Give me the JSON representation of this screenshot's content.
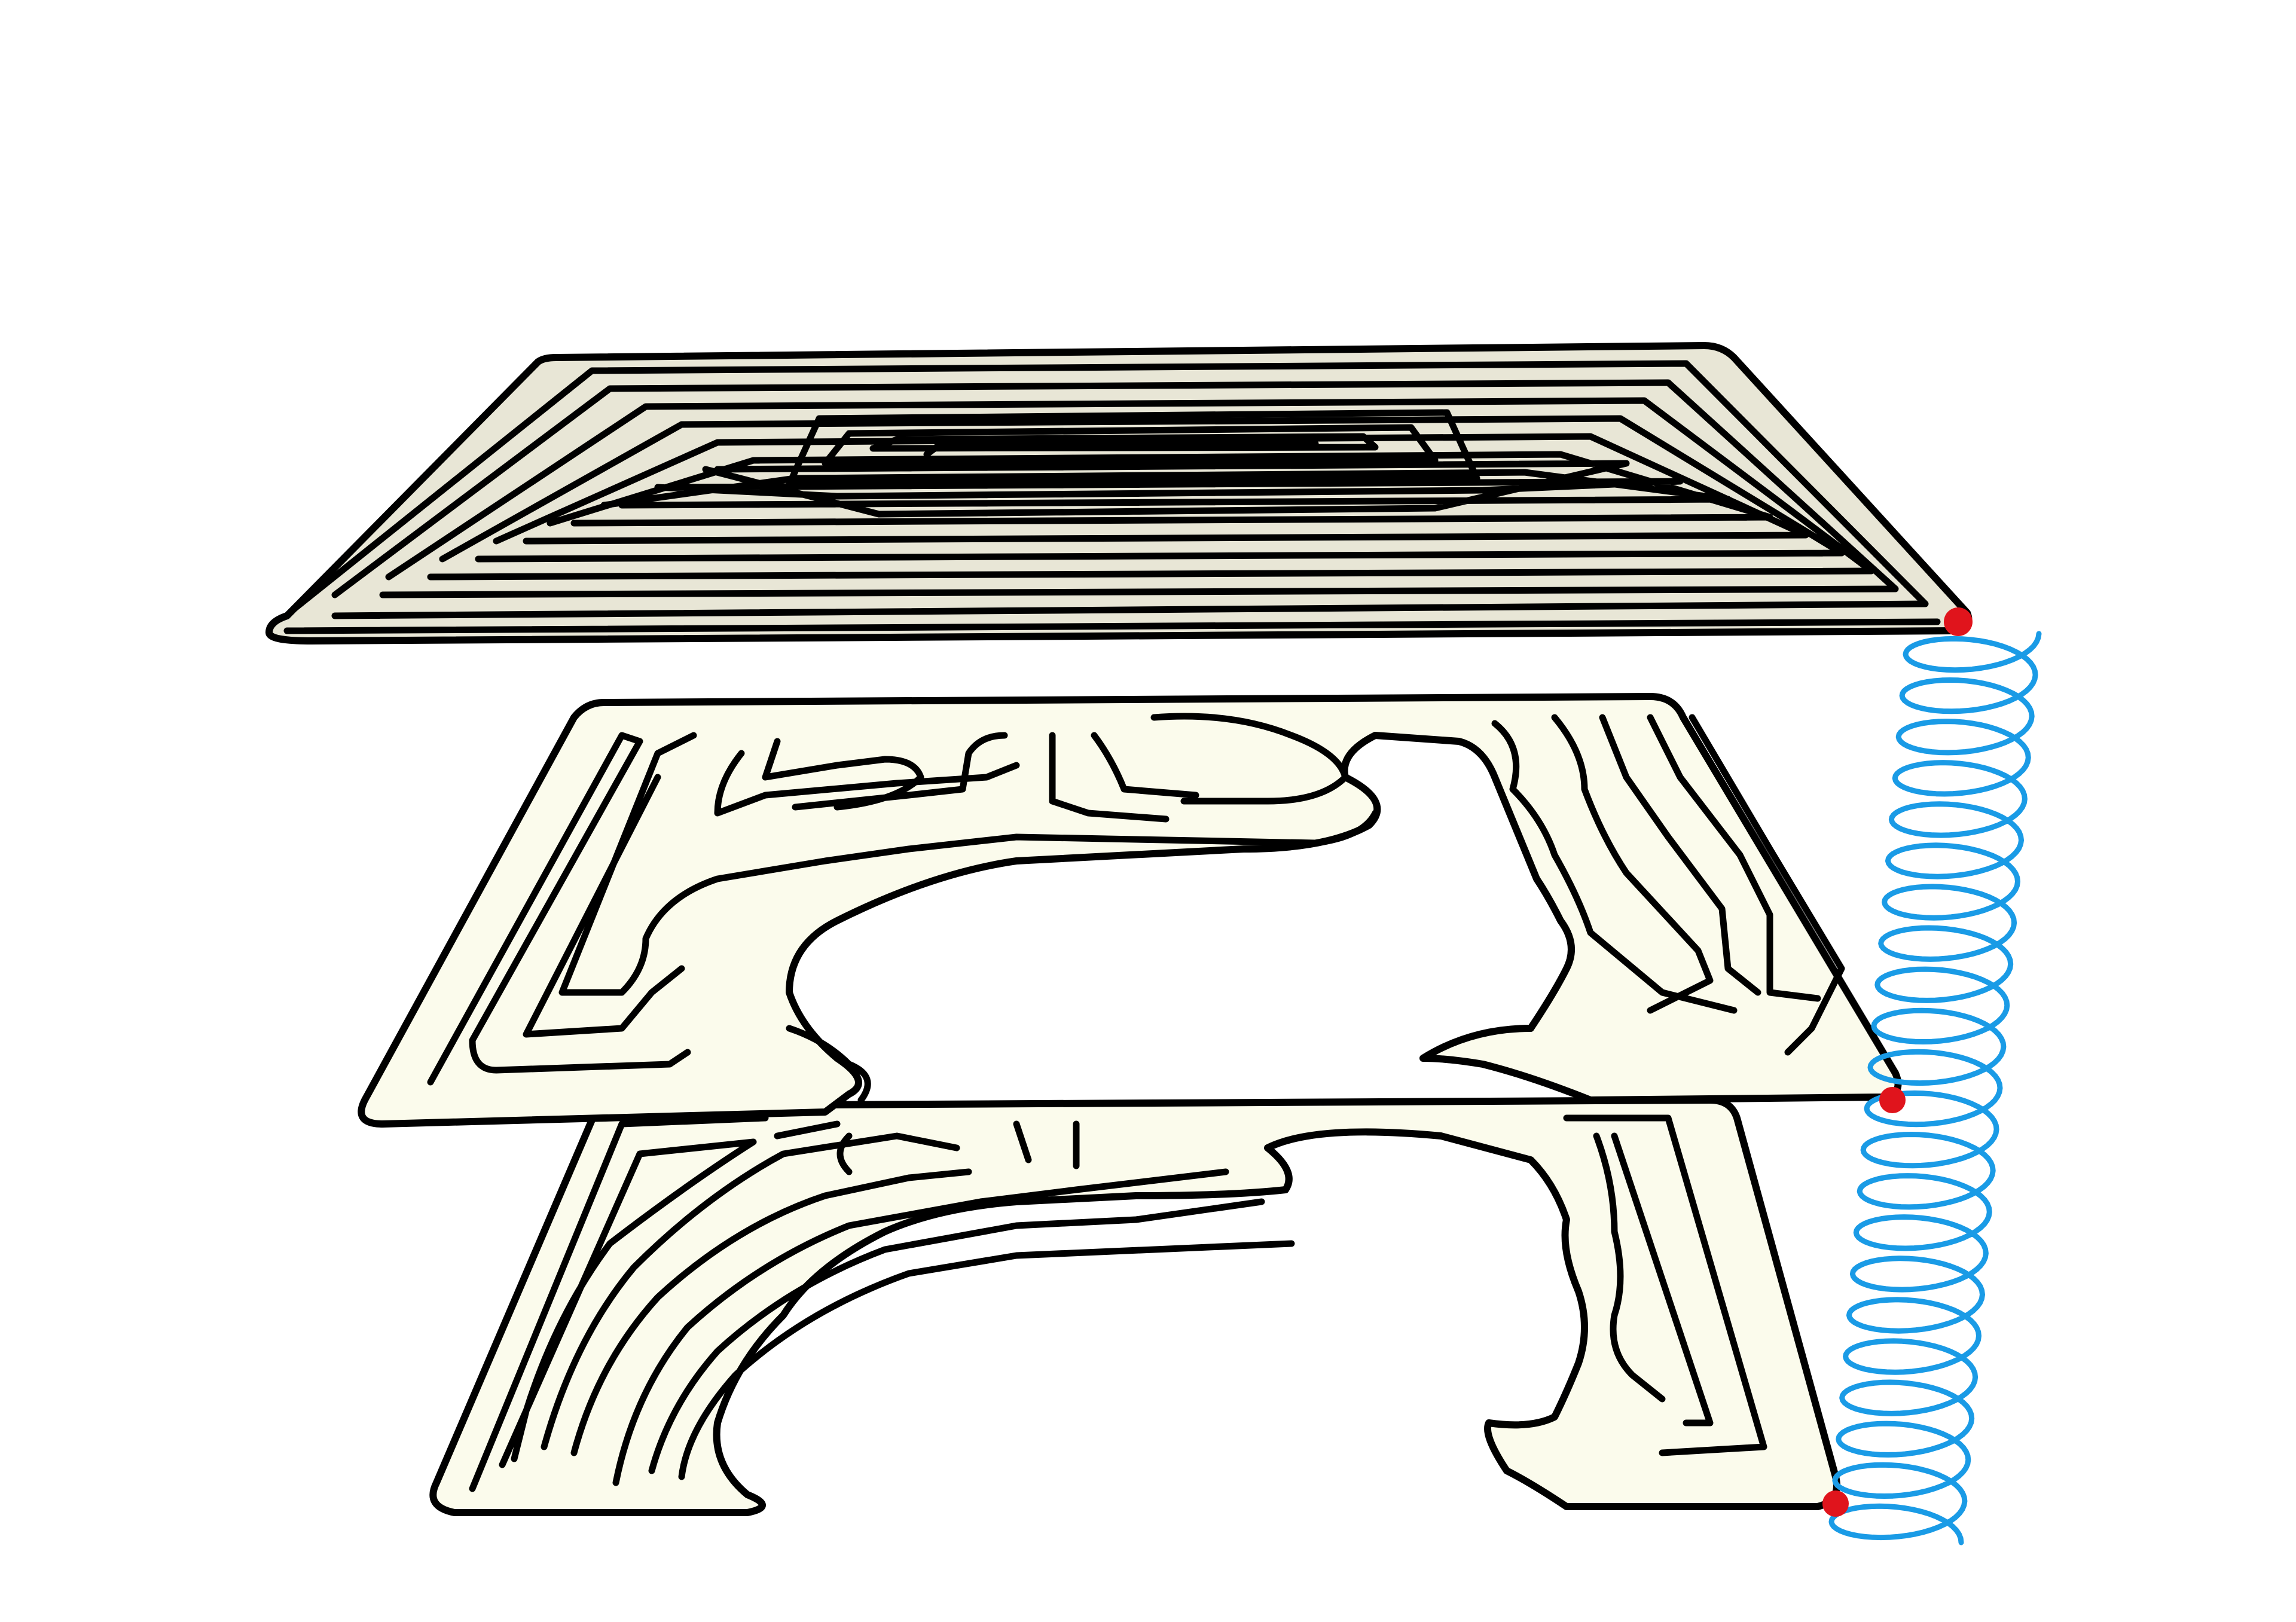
{
  "figure": {
    "subject": "stacked-folded-strips-with-coil",
    "layers": [
      {
        "id": "layer-top",
        "pattern": "rectangular-spiral",
        "fill_color": "#e8e6d6"
      },
      {
        "id": "layer-middle",
        "pattern": "meandering-channels",
        "fill_color": "#fbfbec"
      },
      {
        "id": "layer-bottom",
        "pattern": "meandering-channels",
        "fill_color": "#fbfbec"
      }
    ],
    "coil": {
      "color": "#1a9be6",
      "turns": 22
    },
    "markers": {
      "color": "#e0141c",
      "count": 3
    },
    "outline_color": "#000000",
    "background": "#ffffff"
  }
}
